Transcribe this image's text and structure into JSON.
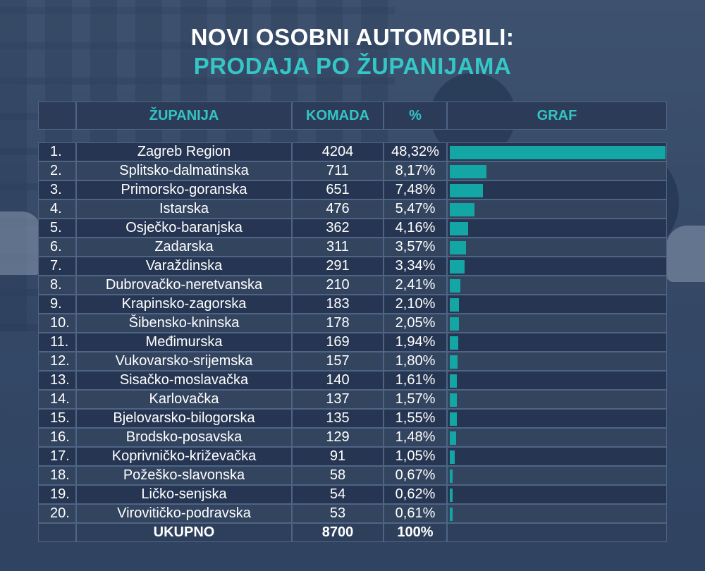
{
  "title_line1": "NOVI OSOBNI AUTOMOBILI:",
  "title_line2": "PRODAJA PO ŽUPANIJAMA",
  "headers": {
    "rank": "",
    "county": "ŽUPANIJA",
    "units": "KOMADA",
    "pct": "%",
    "graph": "GRAF"
  },
  "colors": {
    "accent": "#33c4c4",
    "bar": "#14a5a5",
    "row_dark": "#263652",
    "row_light": "#33445f"
  },
  "total": {
    "label": "UKUPNO",
    "units": "8700",
    "pct": "100%"
  },
  "chart_data": {
    "type": "bar",
    "orientation": "horizontal",
    "title": "NOVI OSOBNI AUTOMOBILI: PRODAJA PO ŽUPANIJAMA",
    "xlim": [
      0,
      48.32
    ],
    "grid": false,
    "rows": [
      {
        "rank": "1.",
        "county": "Zagreb Region",
        "units": "4204",
        "pct_label": "48,32%",
        "pct": 48.32
      },
      {
        "rank": "2.",
        "county": "Splitsko-dalmatinska",
        "units": "711",
        "pct_label": "8,17%",
        "pct": 8.17
      },
      {
        "rank": "3.",
        "county": "Primorsko-goranska",
        "units": "651",
        "pct_label": "7,48%",
        "pct": 7.48
      },
      {
        "rank": "4.",
        "county": "Istarska",
        "units": "476",
        "pct_label": "5,47%",
        "pct": 5.47
      },
      {
        "rank": "5.",
        "county": "Osječko-baranjska",
        "units": "362",
        "pct_label": "4,16%",
        "pct": 4.16
      },
      {
        "rank": "6.",
        "county": "Zadarska",
        "units": "311",
        "pct_label": "3,57%",
        "pct": 3.57
      },
      {
        "rank": "7.",
        "county": "Varaždinska",
        "units": "291",
        "pct_label": "3,34%",
        "pct": 3.34
      },
      {
        "rank": "8.",
        "county": "Dubrovačko-neretvanska",
        "units": "210",
        "pct_label": "2,41%",
        "pct": 2.41
      },
      {
        "rank": "9.",
        "county": "Krapinsko-zagorska",
        "units": "183",
        "pct_label": "2,10%",
        "pct": 2.1
      },
      {
        "rank": "10.",
        "county": "Šibensko-kninska",
        "units": "178",
        "pct_label": "2,05%",
        "pct": 2.05
      },
      {
        "rank": "11.",
        "county": "Međimurska",
        "units": "169",
        "pct_label": "1,94%",
        "pct": 1.94
      },
      {
        "rank": "12.",
        "county": "Vukovarsko-srijemska",
        "units": "157",
        "pct_label": "1,80%",
        "pct": 1.8
      },
      {
        "rank": "13.",
        "county": "Sisačko-moslavačka",
        "units": "140",
        "pct_label": "1,61%",
        "pct": 1.61
      },
      {
        "rank": "14.",
        "county": "Karlovačka",
        "units": "137",
        "pct_label": "1,57%",
        "pct": 1.57
      },
      {
        "rank": "15.",
        "county": "Bjelovarsko-bilogorska",
        "units": "135",
        "pct_label": "1,55%",
        "pct": 1.55
      },
      {
        "rank": "16.",
        "county": "Brodsko-posavska",
        "units": "129",
        "pct_label": "1,48%",
        "pct": 1.48
      },
      {
        "rank": "17.",
        "county": "Koprivničko-križevačka",
        "units": "91",
        "pct_label": "1,05%",
        "pct": 1.05
      },
      {
        "rank": "18.",
        "county": "Požeško-slavonska",
        "units": "58",
        "pct_label": "0,67%",
        "pct": 0.67
      },
      {
        "rank": "19.",
        "county": "Ličko-senjska",
        "units": "54",
        "pct_label": "0,62%",
        "pct": 0.62
      },
      {
        "rank": "20.",
        "county": "Virovitičko-podravska",
        "units": "53",
        "pct_label": "0,61%",
        "pct": 0.61
      }
    ]
  }
}
